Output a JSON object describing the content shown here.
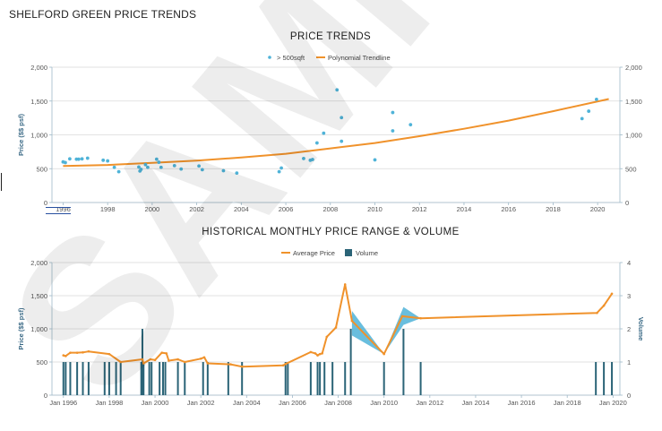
{
  "page": {
    "title": "SHELFORD GREEN PRICE TRENDS",
    "watermark": "SAMPLE"
  },
  "chart_data": [
    {
      "type": "scatter",
      "title": "PRICE TRENDS",
      "xlabel": "",
      "ylabel": "Price ($$ psf)",
      "xlim": [
        1995.5,
        2021
      ],
      "ylim": [
        0,
        2000
      ],
      "x_ticks": [
        1996,
        1998,
        2000,
        2002,
        2004,
        2006,
        2008,
        2010,
        2012,
        2014,
        2016,
        2018,
        2020
      ],
      "y_ticks": [
        0,
        500,
        1000,
        1500,
        2000
      ],
      "y_tick_labels": [
        "0",
        "500",
        "1,000",
        "1,500",
        "2,000"
      ],
      "legend": [
        "> 500sqft",
        "Polynomial Trendline"
      ],
      "series": [
        {
          "name": "> 500sqft",
          "color": "#4fb3d8",
          "points": [
            [
              1996.0,
              600
            ],
            [
              1996.1,
              590
            ],
            [
              1996.3,
              645
            ],
            [
              1996.6,
              640
            ],
            [
              1996.7,
              640
            ],
            [
              1996.85,
              645
            ],
            [
              1997.1,
              655
            ],
            [
              1997.8,
              625
            ],
            [
              1998.0,
              615
            ],
            [
              1998.3,
              520
            ],
            [
              1998.5,
              455
            ],
            [
              1999.4,
              525
            ],
            [
              1999.45,
              465
            ],
            [
              1999.5,
              490
            ],
            [
              1999.7,
              560
            ],
            [
              1999.8,
              520
            ],
            [
              2000.2,
              640
            ],
            [
              2000.3,
              595
            ],
            [
              2000.4,
              520
            ],
            [
              2001.0,
              545
            ],
            [
              2001.3,
              495
            ],
            [
              2002.1,
              540
            ],
            [
              2002.25,
              485
            ],
            [
              2003.2,
              470
            ],
            [
              2003.8,
              435
            ],
            [
              2005.7,
              455
            ],
            [
              2005.8,
              510
            ],
            [
              2006.8,
              650
            ],
            [
              2007.1,
              625
            ],
            [
              2007.2,
              635
            ],
            [
              2007.4,
              880
            ],
            [
              2007.7,
              1025
            ],
            [
              2008.3,
              1665
            ],
            [
              2008.5,
              1255
            ],
            [
              2008.5,
              905
            ],
            [
              2010.0,
              630
            ],
            [
              2010.8,
              1330
            ],
            [
              2010.8,
              1060
            ],
            [
              2011.6,
              1150
            ],
            [
              2019.3,
              1240
            ],
            [
              2019.6,
              1350
            ],
            [
              2019.95,
              1525
            ]
          ]
        },
        {
          "name": "Polynomial Trendline",
          "color": "#f0922b",
          "points": [
            [
              1996,
              540
            ],
            [
              1998,
              555
            ],
            [
              2000,
              585
            ],
            [
              2002,
              620
            ],
            [
              2004,
              665
            ],
            [
              2006,
              720
            ],
            [
              2008,
              800
            ],
            [
              2010,
              880
            ],
            [
              2012,
              980
            ],
            [
              2014,
              1090
            ],
            [
              2016,
              1210
            ],
            [
              2018,
              1350
            ],
            [
              2020.5,
              1530
            ]
          ]
        }
      ]
    },
    {
      "type": "line",
      "title": "HISTORICAL MONTHLY PRICE RANGE & VOLUME",
      "xlabel": "",
      "ylabel": "Price ($$ psf)",
      "y2label": "Volume",
      "xlim": [
        1995.5,
        2020.3
      ],
      "ylim": [
        0,
        2000
      ],
      "y2lim": [
        0,
        4
      ],
      "x_ticks": [
        1996,
        1998,
        2000,
        2002,
        2004,
        2006,
        2008,
        2010,
        2012,
        2014,
        2016,
        2018,
        2020
      ],
      "x_tick_labels": [
        "Jan 1996",
        "Jan 1998",
        "Jan 2000",
        "Jan 2002",
        "Jan 2004",
        "Jan 2006",
        "Jan 2008",
        "Jan 2010",
        "Jan 2012",
        "Jan 2014",
        "Jan 2016",
        "Jan 2018",
        "Jan 2020"
      ],
      "y_ticks": [
        0,
        500,
        1000,
        1500,
        2000
      ],
      "y_tick_labels": [
        "0",
        "500",
        "1,000",
        "1,500",
        "2,000"
      ],
      "y2_ticks": [
        0,
        1,
        2,
        3,
        4
      ],
      "legend": [
        "Average Price",
        "Volume"
      ],
      "series": [
        {
          "name": "Average Price",
          "color": "#f0922b",
          "points": [
            [
              1996.0,
              600
            ],
            [
              1996.1,
              590
            ],
            [
              1996.3,
              640
            ],
            [
              1996.6,
              640
            ],
            [
              1996.85,
              645
            ],
            [
              1997.1,
              660
            ],
            [
              1998.0,
              620
            ],
            [
              1998.5,
              500
            ],
            [
              1999.45,
              540
            ],
            [
              1999.5,
              480
            ],
            [
              1999.8,
              540
            ],
            [
              2000.0,
              530
            ],
            [
              2000.3,
              640
            ],
            [
              2000.5,
              630
            ],
            [
              2000.6,
              520
            ],
            [
              2001.0,
              540
            ],
            [
              2001.3,
              500
            ],
            [
              2002.0,
              550
            ],
            [
              2002.15,
              570
            ],
            [
              2002.3,
              480
            ],
            [
              2003.3,
              465
            ],
            [
              2003.8,
              430
            ],
            [
              2005.6,
              450
            ],
            [
              2005.7,
              470
            ],
            [
              2006.8,
              650
            ],
            [
              2007.0,
              630
            ],
            [
              2007.1,
              600
            ],
            [
              2007.2,
              620
            ],
            [
              2007.3,
              630
            ],
            [
              2007.5,
              880
            ],
            [
              2007.9,
              1020
            ],
            [
              2008.3,
              1670
            ],
            [
              2008.6,
              1120
            ],
            [
              2010.0,
              620
            ],
            [
              2010.8,
              1190
            ],
            [
              2011.6,
              1160
            ],
            [
              2019.3,
              1240
            ],
            [
              2019.6,
              1350
            ],
            [
              2019.95,
              1530
            ]
          ]
        },
        {
          "name": "Price Range",
          "color": "#4fb3d8",
          "areas": [
            {
              "upper": [
                [
                  2008.6,
                  1270
                ],
                [
                  2010.0,
                  620
                ]
              ],
              "lower": [
                [
                  2008.6,
                  900
                ],
                [
                  2010.0,
                  620
                ]
              ]
            },
            {
              "upper": [
                [
                  2010.0,
                  620
                ],
                [
                  2010.85,
                  1330
                ],
                [
                  2011.6,
                  1160
                ]
              ],
              "lower": [
                [
                  2010.0,
                  620
                ],
                [
                  2010.85,
                  1060
                ],
                [
                  2011.6,
                  1160
                ]
              ]
            }
          ]
        },
        {
          "name": "Volume",
          "color": "#2b6477",
          "bars": [
            [
              1996.0,
              1
            ],
            [
              1996.1,
              1
            ],
            [
              1996.3,
              1
            ],
            [
              1996.6,
              1
            ],
            [
              1996.85,
              1
            ],
            [
              1997.1,
              1
            ],
            [
              1997.8,
              1
            ],
            [
              1998.0,
              1
            ],
            [
              1998.3,
              1
            ],
            [
              1998.5,
              1
            ],
            [
              1999.4,
              1
            ],
            [
              1999.45,
              2
            ],
            [
              1999.5,
              1
            ],
            [
              1999.75,
              1
            ],
            [
              1999.85,
              1
            ],
            [
              2000.2,
              1
            ],
            [
              2000.35,
              1
            ],
            [
              2000.45,
              1
            ],
            [
              2001.0,
              1
            ],
            [
              2001.3,
              1
            ],
            [
              2002.1,
              1
            ],
            [
              2002.3,
              1
            ],
            [
              2003.2,
              1
            ],
            [
              2003.8,
              1
            ],
            [
              2005.7,
              1
            ],
            [
              2005.8,
              1
            ],
            [
              2006.8,
              1
            ],
            [
              2007.1,
              1
            ],
            [
              2007.2,
              1
            ],
            [
              2007.4,
              1
            ],
            [
              2007.75,
              1
            ],
            [
              2008.3,
              1
            ],
            [
              2008.55,
              2
            ],
            [
              2010.0,
              1
            ],
            [
              2010.85,
              2
            ],
            [
              2011.6,
              1
            ],
            [
              2019.25,
              1
            ],
            [
              2019.6,
              1
            ],
            [
              2019.95,
              1
            ]
          ]
        }
      ]
    }
  ]
}
